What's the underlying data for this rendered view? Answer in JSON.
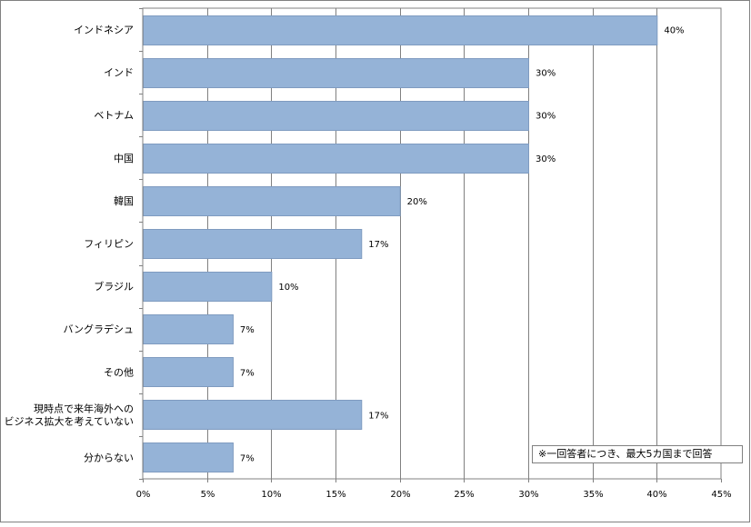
{
  "chart_data": {
    "type": "bar",
    "orientation": "horizontal",
    "categories": [
      "インドネシア",
      "インド",
      "ベトナム",
      "中国",
      "韓国",
      "フィリピン",
      "ブラジル",
      "バングラデシュ",
      "その他",
      "現時点で来年海外への\nビジネス拡大を考えていない",
      "分からない"
    ],
    "values": [
      40,
      30,
      30,
      30,
      20,
      17,
      10,
      7,
      7,
      17,
      7
    ],
    "value_labels": [
      "40%",
      "30%",
      "30%",
      "30%",
      "20%",
      "17%",
      "10%",
      "7%",
      "7%",
      "17%",
      "7%"
    ],
    "x_ticks": [
      0,
      5,
      10,
      15,
      20,
      25,
      30,
      35,
      40,
      45
    ],
    "x_tick_labels": [
      "0%",
      "5%",
      "10%",
      "15%",
      "20%",
      "25%",
      "30%",
      "35%",
      "40%",
      "45%"
    ],
    "xlim": [
      0,
      45
    ],
    "grid": "vertical",
    "bar_color": "#95B3D7",
    "bar_border_color": "#7F9BC0",
    "note": "※一回答者につき、最大5カ国まで回答"
  }
}
